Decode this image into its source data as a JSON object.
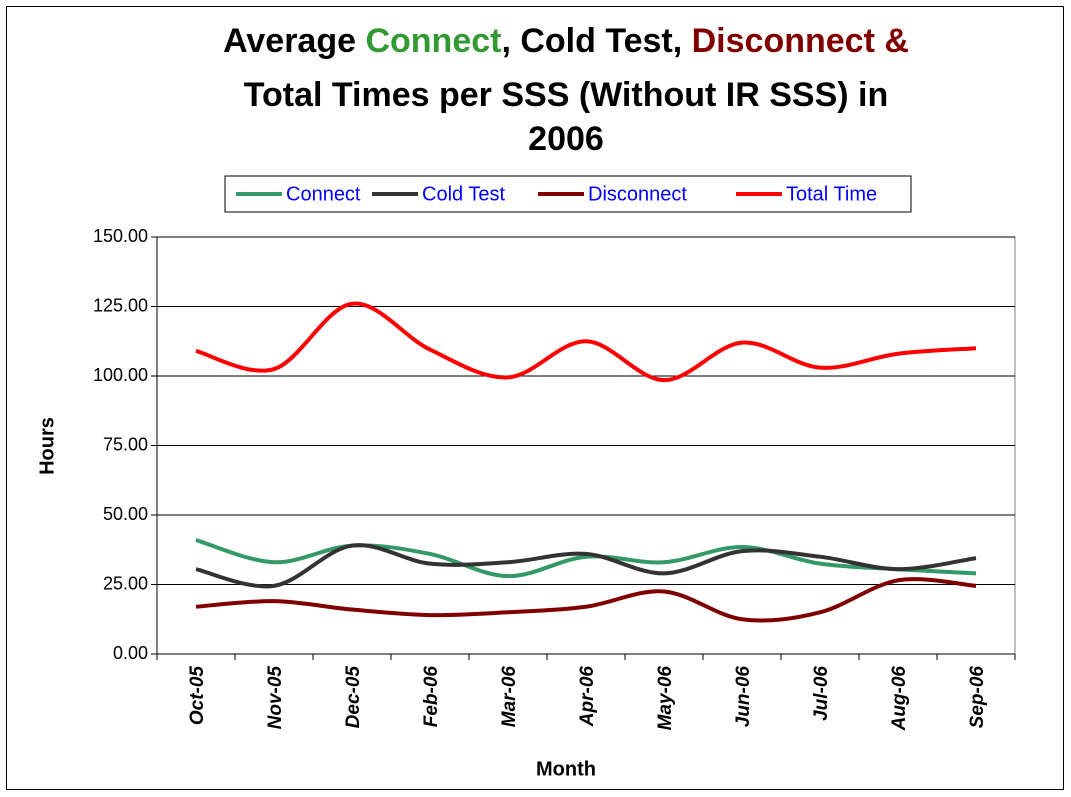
{
  "chart_data": {
    "type": "line",
    "title_lines": [
      [
        {
          "text": "Average ",
          "color": "#000000"
        },
        {
          "text": "Connect",
          "color": "#339933"
        },
        {
          "text": ", Cold Test, ",
          "color": "#000000"
        },
        {
          "text": "Disconnect &",
          "color": "#800000"
        }
      ],
      [
        {
          "text": "Total Times per SSS (Without IR SSS) in",
          "color": "#000000"
        }
      ],
      [
        {
          "text": "2006",
          "color": "#000000"
        }
      ]
    ],
    "x_label": "Month",
    "y_label": "Hours",
    "categories": [
      "Oct-05",
      "Nov-05",
      "Dec-05",
      "Feb-06",
      "Mar-06",
      "Apr-06",
      "May-06",
      "Jun-06",
      "Jul-06",
      "Aug-06",
      "Sep-06"
    ],
    "series": [
      {
        "name": "Connect",
        "color": "#339966",
        "values": [
          41,
          33,
          39,
          36,
          28,
          35,
          33,
          38.5,
          32.5,
          30.5,
          29
        ]
      },
      {
        "name": "Cold Test",
        "color": "#333333",
        "values": [
          30.5,
          24.5,
          39,
          32.5,
          33,
          36,
          29,
          37,
          35,
          30.5,
          34.5
        ]
      },
      {
        "name": "Disconnect",
        "color": "#800000",
        "values": [
          17,
          19,
          16,
          14,
          15,
          17,
          22.5,
          12.5,
          15,
          26.5,
          24.5
        ]
      },
      {
        "name": "Total Time",
        "color": "#ff0000",
        "values": [
          109,
          102.5,
          126,
          109.5,
          99.5,
          112.5,
          98.5,
          112,
          103,
          108,
          110
        ]
      }
    ],
    "ylim": [
      0,
      150
    ],
    "yticks": [
      {
        "value": 0,
        "label": "0.00"
      },
      {
        "value": 25,
        "label": "25.00"
      },
      {
        "value": 50,
        "label": "50.00"
      },
      {
        "value": 75,
        "label": "75.00"
      },
      {
        "value": 100,
        "label": "100.00"
      },
      {
        "value": 125,
        "label": "125.00"
      },
      {
        "value": 150,
        "label": "150.00"
      }
    ],
    "grid": true,
    "smooth": true,
    "legend_position": "top",
    "legend_text_color": "#0000ff"
  }
}
